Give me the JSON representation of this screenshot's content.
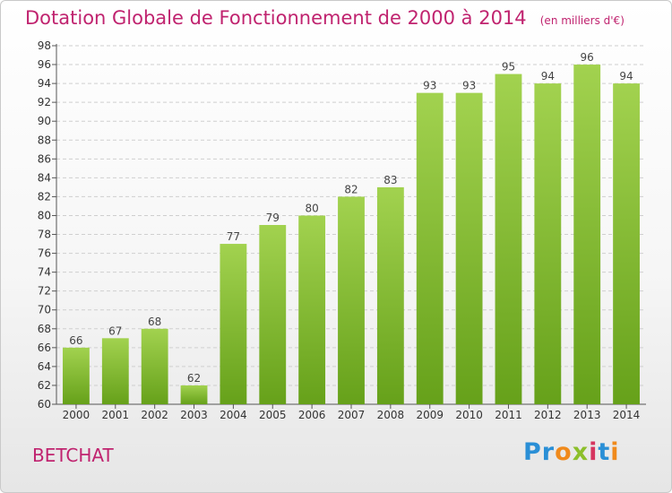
{
  "header": {
    "title": "Dotation Globale de Fonctionnement de 2000 à 2014",
    "unit": "(en milliers d'€)"
  },
  "commune": "BETCHAT",
  "logo": {
    "text": "Proxiti",
    "letters": [
      {
        "ch": "P",
        "color": "#2a8fd6"
      },
      {
        "ch": "r",
        "color": "#2a8fd6"
      },
      {
        "ch": "o",
        "color": "#f08a1c"
      },
      {
        "ch": "x",
        "color": "#8cbf2b"
      },
      {
        "ch": "i",
        "color": "#d6345e"
      },
      {
        "ch": "t",
        "color": "#2a8fd6"
      },
      {
        "ch": "i",
        "color": "#f08a1c"
      }
    ]
  },
  "chart_data": {
    "type": "bar",
    "title": "Dotation Globale de Fonctionnement de 2000 à 2014",
    "subtitle": "(en milliers d'€)",
    "xlabel": "",
    "ylabel": "",
    "categories": [
      "2000",
      "2001",
      "2002",
      "2003",
      "2004",
      "2005",
      "2006",
      "2007",
      "2008",
      "2009",
      "2010",
      "2011",
      "2012",
      "2013",
      "2014"
    ],
    "values": [
      66,
      67,
      68,
      62,
      77,
      79,
      80,
      82,
      83,
      93,
      93,
      95,
      94,
      96,
      94
    ],
    "ylim": [
      60,
      98
    ],
    "yticks": [
      60,
      62,
      64,
      66,
      68,
      70,
      72,
      74,
      76,
      78,
      80,
      82,
      84,
      86,
      88,
      90,
      92,
      94,
      96,
      98
    ],
    "grid": true,
    "bar_color_top": "#a2d24f",
    "bar_color_bottom": "#66a11a",
    "grid_color": "#cfcfcf"
  }
}
